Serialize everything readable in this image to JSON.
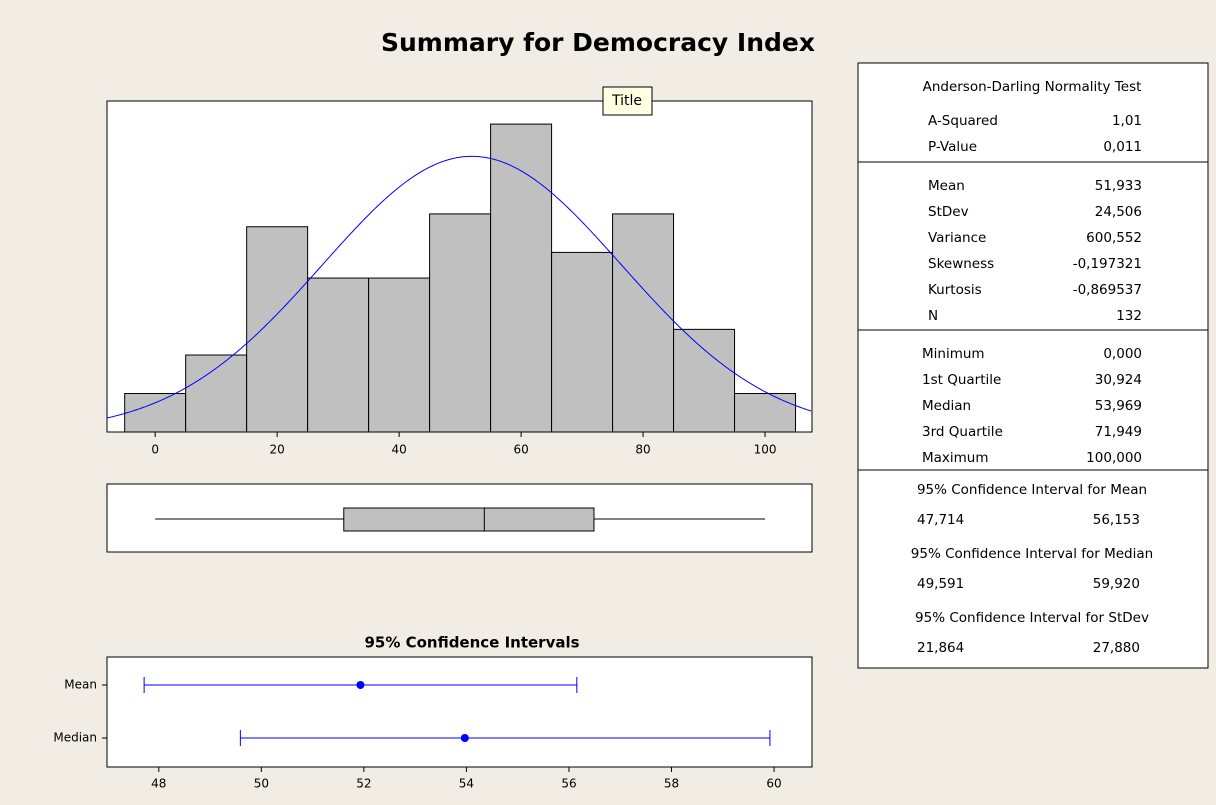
{
  "title": "Summary for Democracy Index",
  "tooltip": "Title",
  "chart_data": [
    {
      "type": "histogram",
      "bins": [
        -5,
        5,
        15,
        25,
        35,
        45,
        55,
        65,
        75,
        85,
        95,
        105
      ],
      "counts": [
        3,
        6,
        16,
        12,
        12,
        17,
        24,
        14,
        17,
        8,
        3
      ],
      "color": "#c0c0c0",
      "curve_color": "#0000ff",
      "normal_fit": {
        "mean": 51.933,
        "stdev": 24.506,
        "n": 132
      },
      "box": {
        "min": 0,
        "q1": 30.924,
        "median": 53.969,
        "q3": 71.949,
        "max": 100
      },
      "xlim": [
        -7.9,
        107.7
      ],
      "ylim": [
        0,
        25.8
      ],
      "xticks": [
        0,
        20,
        40,
        60,
        80,
        100
      ]
    },
    {
      "type": "interval",
      "title": "95% Confidence Intervals",
      "categories": [
        "Mean",
        "Median"
      ],
      "values": [
        51.933,
        53.969
      ],
      "lower": [
        47.714,
        49.591
      ],
      "upper": [
        56.153,
        59.92
      ],
      "color": "#0000ff",
      "xlim": [
        46.99,
        60.74
      ],
      "xticks": [
        48,
        50,
        52,
        54,
        56,
        58,
        60
      ]
    }
  ],
  "stats": {
    "sections": [
      {
        "header": "Anderson-Darling Normality Test",
        "rows": [
          [
            "A-Squared",
            "1,01"
          ],
          [
            "P-Value",
            "0,011"
          ]
        ]
      },
      {
        "rows": [
          [
            "Mean",
            "51,933"
          ],
          [
            "StDev",
            "24,506"
          ],
          [
            "Variance",
            "600,552"
          ],
          [
            "Skewness",
            "-0,197321"
          ],
          [
            "Kurtosis",
            "-0,869537"
          ],
          [
            "N",
            "132"
          ]
        ]
      },
      {
        "rows": [
          [
            "Minimum",
            "0,000"
          ],
          [
            "1st Quartile",
            "30,924"
          ],
          [
            "Median",
            "53,969"
          ],
          [
            "3rd Quartile",
            "71,949"
          ],
          [
            "Maximum",
            "100,000"
          ]
        ]
      }
    ],
    "intervals": [
      {
        "header": "95% Confidence Interval for Mean",
        "values": [
          "47,714",
          "56,153"
        ]
      },
      {
        "header": "95% Confidence Interval for Median",
        "values": [
          "49,591",
          "59,920"
        ]
      },
      {
        "header": "95% Confidence Interval for StDev",
        "values": [
          "21,864",
          "27,880"
        ]
      }
    ]
  }
}
